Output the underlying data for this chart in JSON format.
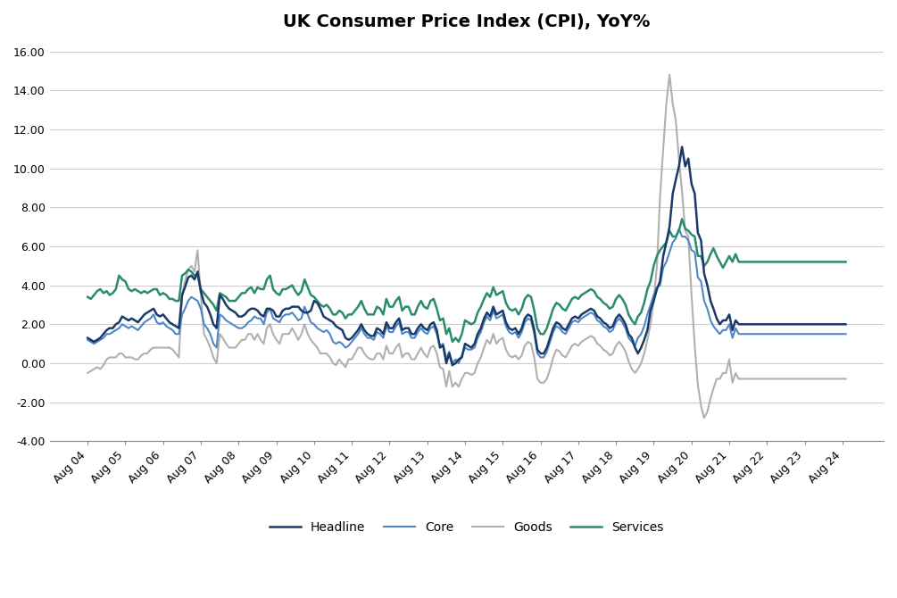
{
  "title": "UK Consumer Price Index (CPI), YoY%",
  "title_fontsize": 14,
  "title_fontweight": "bold",
  "ylim": [
    -4.0,
    16.5
  ],
  "yticks": [
    -4.0,
    -2.0,
    0.0,
    2.0,
    4.0,
    6.0,
    8.0,
    10.0,
    12.0,
    14.0,
    16.0
  ],
  "colors": {
    "Headline": "#1a3a6b",
    "Core": "#4f86c6",
    "Goods": "#b0b0b0",
    "Services": "#2a8c6e"
  },
  "line_widths": {
    "Headline": 1.8,
    "Core": 1.5,
    "Goods": 1.5,
    "Services": 1.8
  },
  "background_color": "#ffffff",
  "grid_color": "#cccccc",
  "x_tick_labels": [
    "Aug 04",
    "Aug 05",
    "Aug 06",
    "Aug 07",
    "Aug 08",
    "Aug 09",
    "Aug 10",
    "Aug 11",
    "Aug 12",
    "Aug 13",
    "Aug 14",
    "Aug 15",
    "Aug 16",
    "Aug 17",
    "Aug 18",
    "Aug 19",
    "Aug 20",
    "Aug 21",
    "Aug 22",
    "Aug 23",
    "Aug 24"
  ],
  "headline": [
    1.3,
    1.2,
    1.1,
    1.2,
    1.3,
    1.5,
    1.7,
    1.8,
    1.8,
    2.0,
    2.1,
    2.4,
    2.3,
    2.2,
    2.3,
    2.2,
    2.1,
    2.3,
    2.5,
    2.6,
    2.7,
    2.8,
    2.5,
    2.4,
    2.5,
    2.3,
    2.1,
    2.0,
    1.9,
    1.8,
    3.5,
    3.9,
    4.4,
    4.5,
    4.3,
    4.7,
    3.7,
    3.1,
    2.9,
    2.5,
    2.0,
    1.8,
    3.5,
    3.3,
    3.0,
    2.8,
    2.7,
    2.6,
    2.4,
    2.4,
    2.5,
    2.7,
    2.8,
    2.8,
    2.7,
    2.5,
    2.4,
    2.8,
    2.8,
    2.7,
    2.4,
    2.4,
    2.7,
    2.8,
    2.8,
    2.9,
    2.9,
    2.9,
    2.7,
    2.6,
    2.6,
    2.7,
    3.2,
    3.1,
    2.8,
    2.4,
    2.3,
    2.2,
    2.1,
    1.9,
    1.8,
    1.7,
    1.3,
    1.2,
    1.3,
    1.5,
    1.7,
    2.0,
    1.7,
    1.5,
    1.4,
    1.4,
    1.8,
    1.7,
    1.5,
    2.1,
    1.8,
    1.8,
    2.1,
    2.3,
    1.7,
    1.8,
    1.8,
    1.5,
    1.5,
    1.8,
    2.0,
    1.8,
    1.7,
    2.0,
    2.1,
    1.7,
    0.8,
    0.9,
    0.0,
    0.5,
    -0.1,
    0.0,
    0.2,
    0.3,
    1.0,
    0.9,
    0.8,
    1.0,
    1.5,
    1.8,
    2.3,
    2.6,
    2.4,
    2.9,
    2.5,
    2.6,
    2.7,
    2.1,
    1.8,
    1.7,
    1.8,
    1.5,
    1.8,
    2.3,
    2.5,
    2.4,
    1.7,
    0.7,
    0.5,
    0.5,
    0.8,
    1.3,
    1.8,
    2.1,
    2.0,
    1.8,
    1.7,
    2.0,
    2.3,
    2.4,
    2.3,
    2.5,
    2.6,
    2.7,
    2.8,
    2.7,
    2.4,
    2.3,
    2.1,
    2.0,
    1.8,
    1.9,
    2.3,
    2.5,
    2.3,
    2.0,
    1.5,
    1.3,
    0.8,
    0.5,
    0.8,
    1.2,
    1.7,
    2.7,
    3.2,
    3.8,
    4.2,
    5.5,
    6.2,
    7.0,
    8.7,
    9.4,
    10.1,
    11.1,
    10.1,
    10.5,
    9.2,
    8.7,
    6.7,
    6.3,
    4.6,
    4.0,
    3.2,
    2.8,
    2.3,
    2.0,
    2.2,
    2.2,
    2.5,
    1.7,
    2.2,
    2.0
  ],
  "core": [
    1.2,
    1.1,
    1.0,
    1.1,
    1.2,
    1.3,
    1.5,
    1.5,
    1.6,
    1.7,
    1.8,
    2.0,
    1.9,
    1.8,
    1.9,
    1.8,
    1.7,
    1.9,
    2.1,
    2.2,
    2.3,
    2.5,
    2.1,
    2.0,
    2.1,
    1.9,
    1.8,
    1.7,
    1.5,
    1.5,
    2.5,
    2.8,
    3.2,
    3.4,
    3.3,
    3.2,
    2.8,
    2.0,
    1.8,
    1.5,
    1.0,
    0.8,
    2.5,
    2.4,
    2.2,
    2.1,
    2.0,
    1.9,
    1.8,
    1.8,
    1.9,
    2.1,
    2.2,
    2.4,
    2.3,
    2.3,
    2.0,
    2.6,
    2.8,
    2.3,
    2.2,
    2.1,
    2.4,
    2.5,
    2.5,
    2.6,
    2.4,
    2.2,
    2.3,
    2.9,
    2.5,
    2.1,
    2.0,
    1.8,
    1.7,
    1.6,
    1.7,
    1.5,
    1.1,
    1.0,
    1.1,
    1.0,
    0.8,
    0.9,
    1.1,
    1.3,
    1.5,
    1.8,
    1.5,
    1.3,
    1.3,
    1.2,
    1.6,
    1.5,
    1.3,
    1.9,
    1.6,
    1.6,
    1.9,
    2.1,
    1.5,
    1.6,
    1.6,
    1.3,
    1.3,
    1.6,
    1.8,
    1.6,
    1.5,
    1.8,
    1.9,
    1.5,
    0.9,
    1.0,
    0.2,
    0.6,
    0.0,
    0.2,
    0.0,
    0.4,
    0.8,
    0.7,
    0.7,
    0.8,
    1.3,
    1.6,
    2.1,
    2.4,
    2.2,
    2.7,
    2.3,
    2.4,
    2.5,
    1.9,
    1.6,
    1.5,
    1.6,
    1.3,
    1.6,
    2.1,
    2.3,
    2.2,
    1.5,
    0.5,
    0.3,
    0.3,
    0.6,
    1.1,
    1.6,
    1.9,
    1.8,
    1.6,
    1.5,
    1.8,
    2.1,
    2.2,
    2.1,
    2.3,
    2.4,
    2.5,
    2.6,
    2.5,
    2.2,
    2.1,
    1.9,
    1.8,
    1.6,
    1.7,
    2.1,
    2.3,
    2.1,
    1.8,
    1.3,
    1.1,
    0.9,
    1.3,
    1.5,
    1.9,
    2.5,
    3.0,
    3.5,
    3.9,
    4.0,
    4.9,
    5.2,
    5.7,
    6.2,
    6.4,
    6.9,
    6.5,
    6.5,
    6.3,
    5.8,
    5.7,
    4.4,
    4.2,
    3.2,
    2.8,
    2.2,
    1.9,
    1.7,
    1.5,
    1.7,
    1.7,
    2.0,
    1.3,
    1.8,
    1.5
  ],
  "goods": [
    -0.5,
    -0.4,
    -0.3,
    -0.2,
    -0.3,
    -0.1,
    0.2,
    0.3,
    0.3,
    0.3,
    0.5,
    0.5,
    0.3,
    0.3,
    0.3,
    0.2,
    0.2,
    0.4,
    0.5,
    0.5,
    0.7,
    0.8,
    0.8,
    0.8,
    0.8,
    0.8,
    0.8,
    0.7,
    0.5,
    0.3,
    3.5,
    4.2,
    4.8,
    5.0,
    4.7,
    5.8,
    3.5,
    1.5,
    1.2,
    0.8,
    0.3,
    0.0,
    1.5,
    1.3,
    1.0,
    0.8,
    0.8,
    0.8,
    1.0,
    1.2,
    1.2,
    1.5,
    1.5,
    1.2,
    1.5,
    1.2,
    1.0,
    1.8,
    2.0,
    1.5,
    1.2,
    1.0,
    1.5,
    1.5,
    1.5,
    1.8,
    1.5,
    1.2,
    1.5,
    2.0,
    1.5,
    1.2,
    1.0,
    0.8,
    0.5,
    0.5,
    0.5,
    0.3,
    0.0,
    -0.1,
    0.2,
    0.0,
    -0.2,
    0.2,
    0.2,
    0.5,
    0.8,
    0.8,
    0.5,
    0.3,
    0.2,
    0.2,
    0.5,
    0.5,
    0.2,
    0.9,
    0.5,
    0.5,
    0.8,
    1.0,
    0.3,
    0.5,
    0.5,
    0.2,
    0.2,
    0.5,
    0.8,
    0.5,
    0.3,
    0.8,
    0.9,
    0.5,
    -0.2,
    -0.3,
    -1.2,
    -0.4,
    -1.2,
    -1.0,
    -1.2,
    -0.8,
    -0.5,
    -0.5,
    -0.6,
    -0.5,
    0.0,
    0.3,
    0.8,
    1.2,
    1.0,
    1.5,
    1.0,
    1.2,
    1.3,
    0.7,
    0.4,
    0.3,
    0.4,
    0.2,
    0.4,
    0.9,
    1.1,
    1.0,
    0.3,
    -0.8,
    -1.0,
    -1.0,
    -0.8,
    -0.3,
    0.3,
    0.7,
    0.6,
    0.4,
    0.3,
    0.6,
    0.9,
    1.0,
    0.9,
    1.1,
    1.2,
    1.3,
    1.4,
    1.3,
    1.0,
    0.9,
    0.7,
    0.6,
    0.4,
    0.5,
    0.9,
    1.1,
    0.9,
    0.6,
    0.1,
    -0.3,
    -0.5,
    -0.3,
    0.0,
    0.5,
    1.2,
    2.0,
    3.2,
    5.0,
    8.5,
    11.0,
    13.3,
    14.8,
    13.3,
    12.5,
    10.5,
    8.8,
    6.8,
    6.5,
    3.5,
    0.9,
    -1.1,
    -2.2,
    -2.8,
    -2.5,
    -1.8,
    -1.3,
    -0.8,
    -0.8,
    -0.5,
    -0.5,
    0.2,
    -1.0,
    -0.5,
    -0.8
  ],
  "services": [
    3.4,
    3.3,
    3.5,
    3.7,
    3.8,
    3.6,
    3.7,
    3.5,
    3.6,
    3.8,
    4.5,
    4.3,
    4.2,
    3.8,
    3.7,
    3.8,
    3.7,
    3.6,
    3.7,
    3.6,
    3.7,
    3.8,
    3.8,
    3.5,
    3.6,
    3.5,
    3.3,
    3.3,
    3.2,
    3.2,
    4.5,
    4.6,
    4.8,
    4.7,
    4.5,
    4.5,
    3.8,
    3.6,
    3.4,
    3.2,
    3.0,
    2.7,
    3.6,
    3.5,
    3.4,
    3.2,
    3.2,
    3.2,
    3.4,
    3.6,
    3.6,
    3.8,
    3.9,
    3.6,
    3.9,
    3.8,
    3.8,
    4.3,
    4.5,
    3.8,
    3.6,
    3.5,
    3.8,
    3.8,
    3.9,
    4.0,
    3.7,
    3.5,
    3.7,
    4.3,
    3.9,
    3.5,
    3.4,
    3.2,
    3.0,
    2.9,
    3.0,
    2.8,
    2.5,
    2.5,
    2.7,
    2.6,
    2.3,
    2.5,
    2.5,
    2.7,
    2.9,
    3.2,
    2.8,
    2.5,
    2.5,
    2.5,
    2.9,
    2.8,
    2.5,
    3.3,
    2.9,
    2.9,
    3.2,
    3.4,
    2.7,
    2.9,
    2.9,
    2.5,
    2.5,
    2.9,
    3.2,
    2.9,
    2.8,
    3.2,
    3.3,
    2.8,
    2.2,
    2.3,
    1.5,
    1.8,
    1.1,
    1.3,
    1.1,
    1.5,
    2.2,
    2.1,
    2.0,
    2.1,
    2.6,
    2.9,
    3.3,
    3.6,
    3.4,
    3.9,
    3.5,
    3.6,
    3.7,
    3.1,
    2.8,
    2.7,
    2.8,
    2.5,
    2.8,
    3.3,
    3.5,
    3.4,
    2.7,
    1.8,
    1.5,
    1.5,
    1.8,
    2.3,
    2.8,
    3.1,
    3.0,
    2.8,
    2.7,
    3.0,
    3.3,
    3.4,
    3.3,
    3.5,
    3.6,
    3.7,
    3.8,
    3.7,
    3.4,
    3.3,
    3.1,
    3.0,
    2.8,
    2.9,
    3.3,
    3.5,
    3.3,
    3.0,
    2.5,
    2.2,
    2.0,
    2.4,
    2.6,
    3.1,
    3.8,
    4.2,
    5.0,
    5.5,
    5.8,
    6.0,
    6.2,
    6.8,
    6.5,
    6.5,
    6.8,
    7.4,
    6.9,
    6.8,
    6.6,
    6.5,
    5.5,
    5.5,
    5.0,
    5.2,
    5.6,
    5.9,
    5.5,
    5.2,
    4.9,
    5.2,
    5.5,
    5.2,
    5.6,
    5.2
  ]
}
